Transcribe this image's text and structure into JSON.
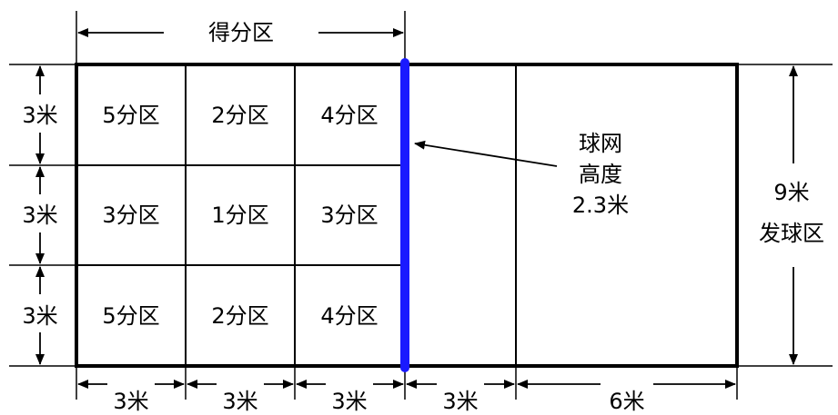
{
  "colors": {
    "net": "#1a1aff",
    "lines": "#000000",
    "background": "#ffffff"
  },
  "top_label": "得分区",
  "zones": [
    [
      "5分区",
      "2分区",
      "4分区"
    ],
    [
      "3分区",
      "1分区",
      "3分区"
    ],
    [
      "5分区",
      "2分区",
      "4分区"
    ]
  ],
  "row_labels": [
    "3米",
    "3米",
    "3米"
  ],
  "bottom_labels": [
    "3米",
    "3米",
    "3米",
    "3米",
    "6米"
  ],
  "net_label": [
    "球网",
    "高度",
    "2.3米"
  ],
  "right_labels": [
    "9米",
    "发球区"
  ]
}
